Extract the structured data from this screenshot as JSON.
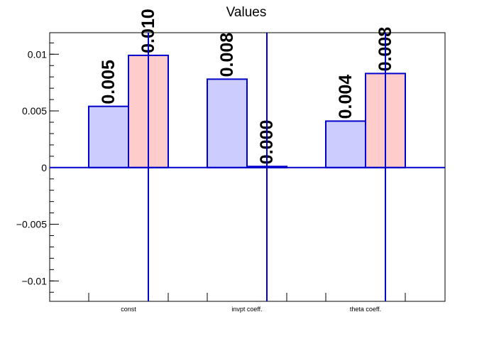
{
  "chart_data": {
    "type": "bar",
    "title": "Values",
    "xlabel": "",
    "ylabel": "",
    "categories": [
      "const",
      "invpt coeff.",
      "theta coeff."
    ],
    "ylim": [
      -0.0118,
      0.0119
    ],
    "yticks": [
      -0.01,
      -0.005,
      0,
      0.005,
      0.01
    ],
    "ytick_labels": [
      "−0.01",
      "−0.005",
      "0",
      "0.005",
      "0.01"
    ],
    "grid": false,
    "legend": "none",
    "series": [
      {
        "values": [
          0.0054,
          0.0078,
          0.0041
        ],
        "labels": [
          "0.005",
          "0.008",
          "0.004"
        ],
        "fill": "#ccccff",
        "stroke": "#0000cc"
      },
      {
        "values": [
          0.0099,
          0.0001,
          0.0083
        ],
        "labels": [
          "0.010",
          "0.000",
          "0.008"
        ],
        "fill": "#ffcccc",
        "stroke": "#0000cc"
      }
    ],
    "error_bars": true,
    "colors": {
      "axis": "#000000",
      "bar_outline": "#0000cc",
      "zero_line": "#0000cc"
    }
  }
}
